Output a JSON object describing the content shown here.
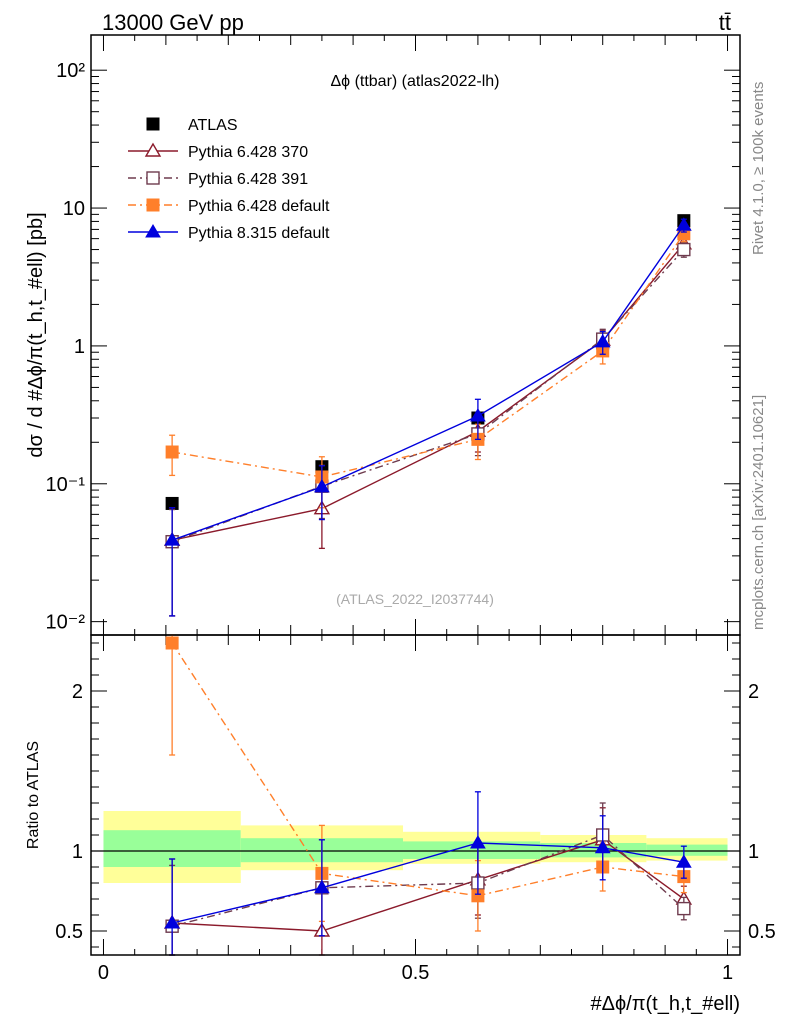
{
  "header": {
    "left": "13000 GeV pp",
    "right": "tt̄"
  },
  "side_labels": {
    "rivet": "Rivet 4.1.0, ≥ 100k events",
    "mcplots": "mcplots.cern.ch [arXiv:2401.10621]"
  },
  "colors": {
    "ATLAS": "#000000",
    "Pythia 6.428 370": "#8b1a2b",
    "Pythia 6.428 391": "#6e3b4e",
    "Pythia 6.428 default": "#ff7f2a",
    "Pythia 8.315 default": "#0000dd",
    "band_inner": "#99ff99",
    "band_outer": "#ffff99"
  },
  "chart_data": [
    {
      "type": "scatter",
      "panel": "main",
      "title": "Δϕ (ttbar) (atlas2022-lh)",
      "watermark": "(ATLAS_2022_I2037744)",
      "xlabel": "#Δϕ/π(t_h,t_#ell)",
      "ylabel": "dσ / d #Δϕ/π(t_h,t_#ell) [pb]",
      "xlim": [
        -0.02,
        1.02
      ],
      "ylim": [
        0.008,
        180
      ],
      "yscale": "log",
      "ytick_labels": [
        "10⁻²",
        "10⁻¹",
        "1",
        "10",
        "10²"
      ],
      "legend_position": "top-left",
      "bin_edges": [
        0,
        0.22,
        0.48,
        0.7,
        0.87,
        1.0
      ],
      "series": [
        {
          "name": "ATLAS",
          "marker": "square",
          "line": "none",
          "x": [
            0.11,
            0.35,
            0.6,
            0.8,
            0.93
          ],
          "y": [
            0.072,
            0.133,
            0.3,
            1.05,
            8.1
          ],
          "yerr": [
            0,
            0,
            0,
            0,
            0
          ]
        },
        {
          "name": "Pythia 6.428 370",
          "marker": "open-triangle",
          "line": "solid",
          "x": [
            0.11,
            0.35,
            0.6,
            0.8,
            0.93
          ],
          "y": [
            0.039,
            0.066,
            0.24,
            1.1,
            5.5
          ],
          "yerr": [
            0.028,
            0.032,
            0.07,
            0.2,
            0.7
          ]
        },
        {
          "name": "Pythia 6.428 391",
          "marker": "open-square",
          "line": "dashdot",
          "x": [
            0.11,
            0.35,
            0.6,
            0.8,
            0.93
          ],
          "y": [
            0.038,
            0.096,
            0.23,
            1.12,
            5.0
          ],
          "yerr": [
            0.027,
            0.04,
            0.07,
            0.2,
            0.6
          ]
        },
        {
          "name": "Pythia 6.428 default",
          "marker": "square",
          "line": "dashdot",
          "x": [
            0.11,
            0.35,
            0.6,
            0.8,
            0.93
          ],
          "y": [
            0.17,
            0.112,
            0.21,
            0.92,
            6.5
          ],
          "yerr": [
            0.055,
            0.045,
            0.06,
            0.18,
            0.8
          ]
        },
        {
          "name": "Pythia 8.315 default",
          "marker": "triangle",
          "line": "solid",
          "x": [
            0.11,
            0.35,
            0.6,
            0.8,
            0.93
          ],
          "y": [
            0.039,
            0.095,
            0.31,
            1.07,
            7.5
          ],
          "yerr": [
            0.028,
            0.04,
            0.1,
            0.2,
            0.8
          ]
        }
      ]
    },
    {
      "type": "scatter",
      "panel": "ratio",
      "ylabel": "Ratio to ATLAS",
      "xlabel": "#Δϕ/π(t_h,t_#ell)",
      "xlim": [
        -0.02,
        1.02
      ],
      "ylim": [
        0.35,
        2.35
      ],
      "ytick_labels": [
        "0.5",
        "1",
        "2"
      ],
      "xtick_labels": [
        "0",
        "0.5",
        "1"
      ],
      "bands": {
        "edges": [
          0,
          0.22,
          0.48,
          0.7,
          0.87,
          1.0
        ],
        "inner_lo": [
          0.9,
          0.93,
          0.95,
          0.96,
          0.97
        ],
        "inner_hi": [
          1.13,
          1.08,
          1.06,
          1.05,
          1.04
        ],
        "outer_lo": [
          0.8,
          0.88,
          0.92,
          0.93,
          0.94
        ],
        "outer_hi": [
          1.25,
          1.16,
          1.12,
          1.1,
          1.08
        ]
      },
      "series": [
        {
          "name": "Pythia 6.428 370",
          "x": [
            0.11,
            0.35,
            0.6,
            0.8,
            0.93
          ],
          "y": [
            0.55,
            0.5,
            0.82,
            1.07,
            0.7
          ],
          "yerr": [
            0.4,
            0.25,
            0.22,
            0.2,
            0.08
          ]
        },
        {
          "name": "Pythia 6.428 391",
          "x": [
            0.11,
            0.35,
            0.6,
            0.8,
            0.93
          ],
          "y": [
            0.53,
            0.77,
            0.8,
            1.1,
            0.64
          ],
          "yerr": [
            0.38,
            0.3,
            0.22,
            0.2,
            0.07
          ]
        },
        {
          "name": "Pythia 6.428 default",
          "x": [
            0.11,
            0.35,
            0.6,
            0.8,
            0.93
          ],
          "y": [
            2.3,
            0.86,
            0.72,
            0.9,
            0.84
          ],
          "yerr": [
            0.7,
            0.3,
            0.22,
            0.15,
            0.1
          ]
        },
        {
          "name": "Pythia 8.315 default",
          "x": [
            0.11,
            0.35,
            0.6,
            0.8,
            0.93
          ],
          "y": [
            0.55,
            0.77,
            1.05,
            1.02,
            0.93
          ],
          "yerr": [
            0.4,
            0.3,
            0.32,
            0.2,
            0.1
          ]
        }
      ]
    }
  ]
}
